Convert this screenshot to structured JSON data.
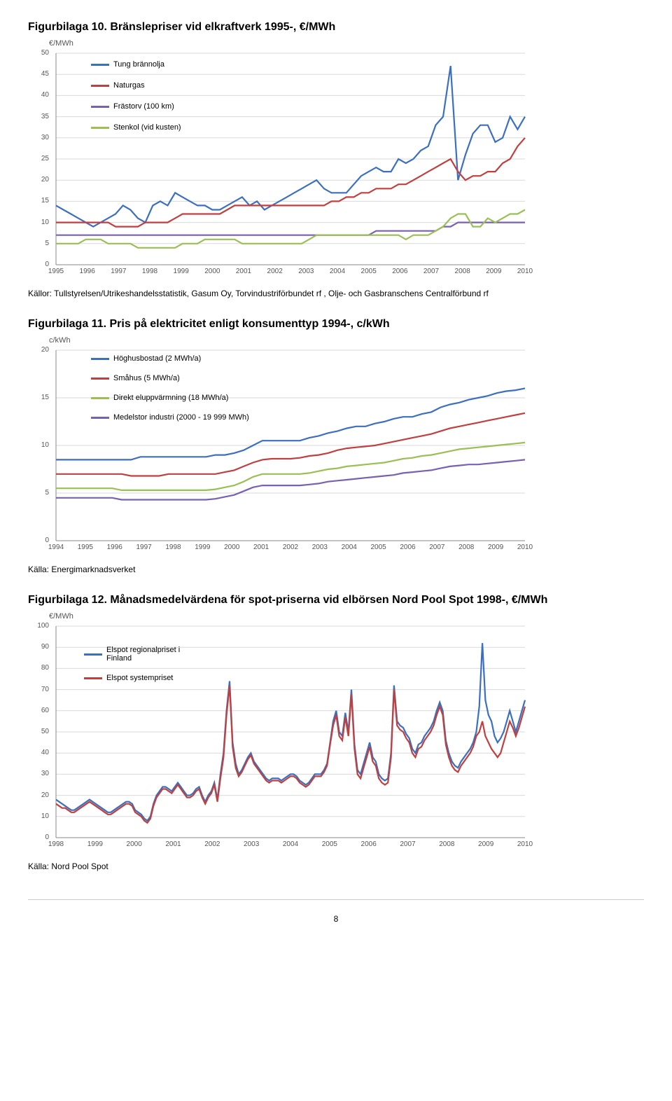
{
  "page_number": "8",
  "fig10": {
    "title": "Figurbilaga 10. Bränslepriser vid elkraftverk 1995-, €/MWh",
    "source": "Källor: Tullstyrelsen/Utrikeshandelsstatistik, Gasum Oy, Torvindustriförbundet rf , Olje- och Gasbranschens Centralförbund rf",
    "y_axis_label": "€/MWh",
    "ylim": [
      0,
      50
    ],
    "ytick_step": 5,
    "xyears": [
      "1995",
      "1996",
      "1997",
      "1998",
      "1999",
      "2000",
      "2001",
      "2002",
      "2003",
      "2004",
      "2005",
      "2006",
      "2007",
      "2008",
      "2009",
      "2010"
    ],
    "grid_color": "#d9d9d9",
    "background": "#ffffff",
    "series": [
      {
        "name": "Tung brännolja",
        "color": "#3b6fbf",
        "data": [
          14,
          13,
          12,
          11,
          10,
          9,
          10,
          11,
          12,
          14,
          13,
          11,
          10,
          14,
          15,
          14,
          17,
          16,
          15,
          14,
          14,
          13,
          13,
          14,
          15,
          16,
          14,
          15,
          13,
          14,
          15,
          16,
          17,
          18,
          19,
          20,
          18,
          17,
          17,
          17,
          19,
          21,
          22,
          23,
          22,
          22,
          25,
          24,
          25,
          27,
          28,
          33,
          35,
          47,
          20,
          26,
          31,
          33,
          33,
          29,
          30,
          35,
          32,
          35
        ]
      },
      {
        "name": "Naturgas",
        "color": "#c04040",
        "data": [
          10,
          10,
          10,
          10,
          10,
          10,
          10,
          10,
          9,
          9,
          9,
          9,
          10,
          10,
          10,
          10,
          11,
          12,
          12,
          12,
          12,
          12,
          12,
          13,
          14,
          14,
          14,
          14,
          14,
          14,
          14,
          14,
          14,
          14,
          14,
          14,
          14,
          15,
          15,
          16,
          16,
          17,
          17,
          18,
          18,
          18,
          19,
          19,
          20,
          21,
          22,
          23,
          24,
          25,
          22,
          20,
          21,
          21,
          22,
          22,
          24,
          25,
          28,
          30
        ]
      },
      {
        "name": "Frästorv (100 km)",
        "color": "#7960b0",
        "data": [
          7,
          7,
          7,
          7,
          7,
          7,
          7,
          7,
          7,
          7,
          7,
          7,
          7,
          7,
          7,
          7,
          7,
          7,
          7,
          7,
          7,
          7,
          7,
          7,
          7,
          7,
          7,
          7,
          7,
          7,
          7,
          7,
          7,
          7,
          7,
          7,
          7,
          7,
          7,
          7,
          7,
          7,
          7,
          8,
          8,
          8,
          8,
          8,
          8,
          8,
          8,
          8,
          9,
          9,
          10,
          10,
          10,
          10,
          10,
          10,
          10,
          10,
          10,
          10
        ]
      },
      {
        "name": "Stenkol (vid kusten)",
        "color": "#9abf53",
        "data": [
          5,
          5,
          5,
          5,
          6,
          6,
          6,
          5,
          5,
          5,
          5,
          4,
          4,
          4,
          4,
          4,
          4,
          5,
          5,
          5,
          6,
          6,
          6,
          6,
          6,
          5,
          5,
          5,
          5,
          5,
          5,
          5,
          5,
          5,
          6,
          7,
          7,
          7,
          7,
          7,
          7,
          7,
          7,
          7,
          7,
          7,
          7,
          6,
          7,
          7,
          7,
          8,
          9,
          11,
          12,
          12,
          9,
          9,
          11,
          10,
          11,
          12,
          12,
          13
        ]
      }
    ]
  },
  "fig11": {
    "title": "Figurbilaga 11. Pris på elektricitet enligt konsumenttyp 1994-, c/kWh",
    "source": "Källa: Energimarknadsverket",
    "y_axis_label": "c/kWh",
    "ylim": [
      0,
      20
    ],
    "ytick_step": 5,
    "xyears": [
      "1994",
      "1995",
      "1996",
      "1997",
      "1998",
      "1999",
      "2000",
      "2001",
      "2002",
      "2003",
      "2004",
      "2005",
      "2006",
      "2007",
      "2008",
      "2009",
      "2010"
    ],
    "grid_color": "#d9d9d9",
    "series": [
      {
        "name": "Höghusbostad (2 MWh/a)",
        "color": "#3b6fbf",
        "data": [
          8.5,
          8.5,
          8.5,
          8.5,
          8.5,
          8.5,
          8.5,
          8.5,
          8.5,
          8.8,
          8.8,
          8.8,
          8.8,
          8.8,
          8.8,
          8.8,
          8.8,
          9,
          9,
          9.2,
          9.5,
          10,
          10.5,
          10.5,
          10.5,
          10.5,
          10.5,
          10.8,
          11,
          11.3,
          11.5,
          11.8,
          12,
          12,
          12.3,
          12.5,
          12.8,
          13,
          13,
          13.3,
          13.5,
          14,
          14.3,
          14.5,
          14.8,
          15,
          15.2,
          15.5,
          15.7,
          15.8,
          16
        ]
      },
      {
        "name": "Småhus (5 MWh/a)",
        "color": "#c04040",
        "data": [
          7,
          7,
          7,
          7,
          7,
          7,
          7,
          7,
          6.8,
          6.8,
          6.8,
          6.8,
          7,
          7,
          7,
          7,
          7,
          7,
          7.2,
          7.4,
          7.8,
          8.2,
          8.5,
          8.6,
          8.6,
          8.6,
          8.7,
          8.9,
          9,
          9.2,
          9.5,
          9.7,
          9.8,
          9.9,
          10,
          10.2,
          10.4,
          10.6,
          10.8,
          11,
          11.2,
          11.5,
          11.8,
          12,
          12.2,
          12.4,
          12.6,
          12.8,
          13,
          13.2,
          13.4
        ]
      },
      {
        "name": "Direkt eluppvärmning (18 MWh/a)",
        "color": "#9abf53",
        "data": [
          5.5,
          5.5,
          5.5,
          5.5,
          5.5,
          5.5,
          5.5,
          5.3,
          5.3,
          5.3,
          5.3,
          5.3,
          5.3,
          5.3,
          5.3,
          5.3,
          5.3,
          5.4,
          5.6,
          5.8,
          6.2,
          6.7,
          7,
          7,
          7,
          7,
          7,
          7.1,
          7.3,
          7.5,
          7.6,
          7.8,
          7.9,
          8,
          8.1,
          8.2,
          8.4,
          8.6,
          8.7,
          8.9,
          9,
          9.2,
          9.4,
          9.6,
          9.7,
          9.8,
          9.9,
          10,
          10.1,
          10.2,
          10.3
        ]
      },
      {
        "name": "Medelstor industri (2000 - 19 999 MWh)",
        "color": "#7960b0",
        "data": [
          4.5,
          4.5,
          4.5,
          4.5,
          4.5,
          4.5,
          4.5,
          4.3,
          4.3,
          4.3,
          4.3,
          4.3,
          4.3,
          4.3,
          4.3,
          4.3,
          4.3,
          4.4,
          4.6,
          4.8,
          5.2,
          5.6,
          5.8,
          5.8,
          5.8,
          5.8,
          5.8,
          5.9,
          6,
          6.2,
          6.3,
          6.4,
          6.5,
          6.6,
          6.7,
          6.8,
          6.9,
          7.1,
          7.2,
          7.3,
          7.4,
          7.6,
          7.8,
          7.9,
          8,
          8,
          8.1,
          8.2,
          8.3,
          8.4,
          8.5
        ]
      }
    ]
  },
  "fig12": {
    "title": "Figurbilaga 12. Månadsmedelvärdena för spot-priserna vid elbörsen Nord Pool Spot 1998-, €/MWh",
    "source": "Källa: Nord Pool Spot",
    "y_axis_label": "€/MWh",
    "ylim": [
      0,
      100
    ],
    "ytick_step": 10,
    "xyears": [
      "1998",
      "1999",
      "2000",
      "2001",
      "2002",
      "2003",
      "2004",
      "2005",
      "2006",
      "2007",
      "2008",
      "2009",
      "2010"
    ],
    "grid_color": "#d9d9d9",
    "series": [
      {
        "name": "Elspot regionalpriset i Finland",
        "color": "#3b6fbf",
        "data": [
          18,
          17,
          16,
          15,
          14,
          13,
          13,
          14,
          15,
          16,
          17,
          18,
          17,
          16,
          15,
          14,
          13,
          12,
          12,
          13,
          14,
          15,
          16,
          17,
          17,
          16,
          13,
          12,
          11,
          9,
          8,
          10,
          16,
          20,
          22,
          24,
          24,
          23,
          22,
          24,
          26,
          24,
          22,
          20,
          20,
          21,
          23,
          24,
          20,
          17,
          20,
          22,
          26,
          18,
          30,
          40,
          60,
          74,
          45,
          35,
          30,
          32,
          35,
          38,
          40,
          36,
          34,
          32,
          30,
          28,
          27,
          28,
          28,
          28,
          27,
          28,
          29,
          30,
          30,
          29,
          27,
          26,
          25,
          26,
          28,
          30,
          30,
          30,
          32,
          35,
          45,
          55,
          60,
          50,
          48,
          59,
          50,
          70,
          44,
          32,
          30,
          35,
          40,
          45,
          38,
          36,
          30,
          28,
          27,
          28,
          40,
          72,
          55,
          53,
          52,
          49,
          47,
          42,
          40,
          44,
          45,
          48,
          50,
          52,
          55,
          60,
          64,
          60,
          46,
          40,
          36,
          34,
          33,
          36,
          38,
          40,
          42,
          45,
          50,
          62,
          92,
          65,
          58,
          55,
          48,
          45,
          47,
          50,
          55,
          60,
          55,
          50,
          55,
          60,
          65
        ]
      },
      {
        "name": "Elspot systempriset",
        "color": "#c04040",
        "data": [
          16,
          15,
          14,
          14,
          13,
          12,
          12,
          13,
          14,
          15,
          16,
          17,
          16,
          15,
          14,
          13,
          12,
          11,
          11,
          12,
          13,
          14,
          15,
          16,
          16,
          15,
          12,
          11,
          10,
          8,
          7,
          9,
          15,
          19,
          21,
          23,
          23,
          22,
          21,
          23,
          25,
          23,
          21,
          19,
          19,
          20,
          22,
          23,
          19,
          16,
          19,
          21,
          25,
          17,
          28,
          38,
          58,
          72,
          43,
          33,
          29,
          31,
          34,
          37,
          39,
          35,
          33,
          31,
          29,
          27,
          26,
          27,
          27,
          27,
          26,
          27,
          28,
          29,
          29,
          28,
          26,
          25,
          24,
          25,
          27,
          29,
          29,
          29,
          31,
          34,
          44,
          53,
          58,
          48,
          46,
          57,
          48,
          68,
          42,
          30,
          28,
          33,
          38,
          43,
          36,
          34,
          28,
          26,
          25,
          26,
          38,
          70,
          53,
          51,
          50,
          47,
          45,
          40,
          38,
          42,
          43,
          46,
          48,
          50,
          53,
          58,
          62,
          58,
          44,
          38,
          34,
          32,
          31,
          34,
          36,
          38,
          40,
          43,
          48,
          50,
          55,
          48,
          45,
          42,
          40,
          38,
          40,
          45,
          50,
          55,
          52,
          48,
          52,
          57,
          62
        ]
      }
    ]
  }
}
